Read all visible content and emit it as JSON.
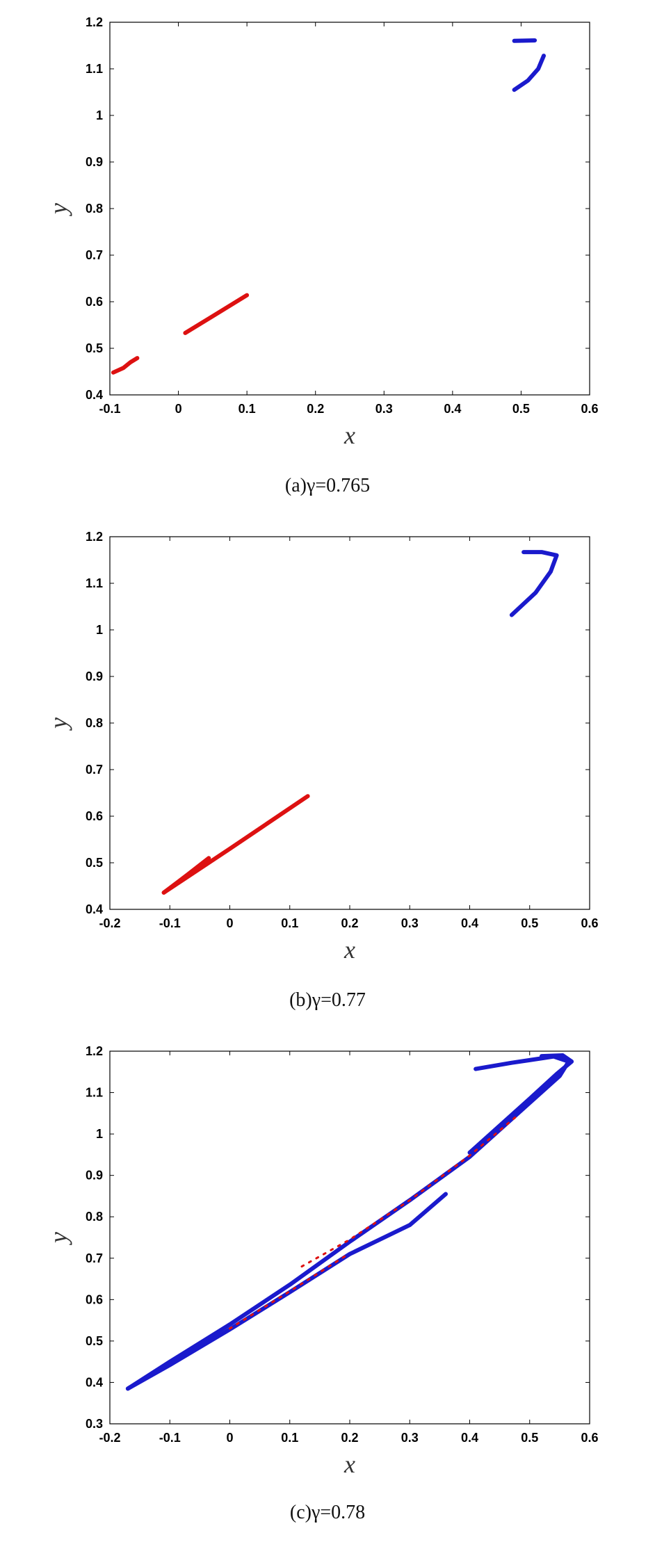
{
  "chart_data": [
    {
      "type": "scatter",
      "caption": "(a)γ=0.765",
      "xlabel": "x",
      "ylabel": "y",
      "xlim": [
        -0.1,
        0.6
      ],
      "ylim": [
        0.4,
        1.2
      ],
      "xticks": [
        "-0.1",
        "0",
        "0.1",
        "0.2",
        "0.3",
        "0.4",
        "0.5",
        "0.6"
      ],
      "yticks": [
        "0.4",
        "0.5",
        "0.6",
        "0.7",
        "0.8",
        "0.9",
        "1",
        "1.1",
        "1.2"
      ],
      "series": [
        {
          "color": "#dd1111",
          "segments": [
            [
              [
                -0.095,
                0.448
              ],
              [
                -0.08,
                0.458
              ],
              [
                -0.07,
                0.47
              ],
              [
                -0.06,
                0.479
              ]
            ],
            [
              [
                0.01,
                0.533
              ],
              [
                0.05,
                0.569
              ],
              [
                0.1,
                0.614
              ]
            ]
          ]
        },
        {
          "color": "#1a1acc",
          "segments": [
            [
              [
                0.49,
                1.16
              ],
              [
                0.52,
                1.161
              ]
            ],
            [
              [
                0.49,
                1.055
              ],
              [
                0.51,
                1.075
              ],
              [
                0.525,
                1.1
              ],
              [
                0.533,
                1.128
              ]
            ]
          ]
        }
      ]
    },
    {
      "type": "scatter",
      "caption": "(b)γ=0.77",
      "xlabel": "x",
      "ylabel": "y",
      "xlim": [
        -0.2,
        0.6
      ],
      "ylim": [
        0.4,
        1.2
      ],
      "xticks": [
        "-0.2",
        "-0.1",
        "0",
        "0.1",
        "0.2",
        "0.3",
        "0.4",
        "0.5",
        "0.6"
      ],
      "yticks": [
        "0.4",
        "0.5",
        "0.6",
        "0.7",
        "0.8",
        "0.9",
        "1",
        "1.1",
        "1.2"
      ],
      "series": [
        {
          "color": "#dd1111",
          "segments": [
            [
              [
                -0.11,
                0.436
              ],
              [
                0.0,
                0.53
              ],
              [
                0.13,
                0.643
              ]
            ],
            [
              [
                -0.11,
                0.436
              ],
              [
                -0.07,
                0.475
              ],
              [
                -0.035,
                0.51
              ]
            ]
          ]
        },
        {
          "color": "#1a1acc",
          "segments": [
            [
              [
                0.47,
                1.032
              ],
              [
                0.51,
                1.08
              ],
              [
                0.535,
                1.125
              ],
              [
                0.545,
                1.16
              ],
              [
                0.52,
                1.167
              ],
              [
                0.49,
                1.167
              ]
            ]
          ]
        }
      ]
    },
    {
      "type": "scatter",
      "caption": "(c)γ=0.78",
      "xlabel": "x",
      "ylabel": "y",
      "xlim": [
        -0.2,
        0.6
      ],
      "ylim": [
        0.3,
        1.2
      ],
      "xticks": [
        "-0.2",
        "-0.1",
        "0",
        "0.1",
        "0.2",
        "0.3",
        "0.4",
        "0.5",
        "0.6"
      ],
      "yticks": [
        "0.3",
        "0.4",
        "0.5",
        "0.6",
        "0.7",
        "0.8",
        "0.9",
        "1",
        "1.1",
        "1.2"
      ],
      "series": [
        {
          "color": "#1a1acc",
          "segments": [
            [
              [
                -0.17,
                0.385
              ],
              [
                -0.1,
                0.45
              ],
              [
                0.0,
                0.54
              ],
              [
                0.1,
                0.636
              ],
              [
                0.2,
                0.74
              ],
              [
                0.3,
                0.84
              ],
              [
                0.4,
                0.945
              ],
              [
                0.5,
                1.075
              ],
              [
                0.55,
                1.14
              ],
              [
                0.565,
                1.175
              ],
              [
                0.54,
                1.187
              ],
              [
                0.47,
                1.172
              ],
              [
                0.41,
                1.157
              ]
            ],
            [
              [
                -0.17,
                0.385
              ],
              [
                -0.1,
                0.442
              ],
              [
                0.0,
                0.528
              ],
              [
                0.1,
                0.618
              ],
              [
                0.2,
                0.71
              ],
              [
                0.3,
                0.78
              ],
              [
                0.36,
                0.855
              ]
            ],
            [
              [
                0.4,
                0.955
              ],
              [
                0.5,
                1.085
              ],
              [
                0.545,
                1.145
              ],
              [
                0.57,
                1.175
              ],
              [
                0.555,
                1.19
              ],
              [
                0.52,
                1.188
              ]
            ]
          ]
        },
        {
          "color": "#dd1111",
          "dotted": true,
          "segments": [
            [
              [
                0.12,
                0.68
              ],
              [
                0.2,
                0.745
              ],
              [
                0.3,
                0.84
              ],
              [
                0.4,
                0.948
              ],
              [
                0.48,
                1.045
              ]
            ],
            [
              [
                0.0,
                0.53
              ],
              [
                0.1,
                0.62
              ],
              [
                0.2,
                0.712
              ]
            ]
          ]
        }
      ]
    }
  ]
}
